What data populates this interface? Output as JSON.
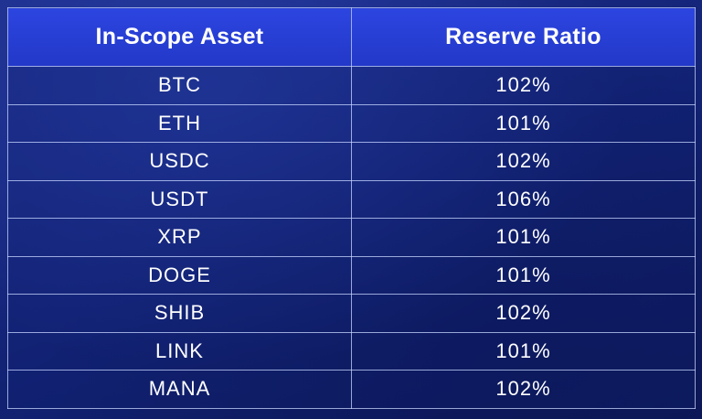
{
  "table": {
    "headers": [
      "In-Scope Asset",
      "Reserve Ratio"
    ],
    "rows": [
      [
        "BTC",
        "102%"
      ],
      [
        "ETH",
        "101%"
      ],
      [
        "USDC",
        "102%"
      ],
      [
        "USDT",
        "106%"
      ],
      [
        "XRP",
        "101%"
      ],
      [
        "DOGE",
        "101%"
      ],
      [
        "SHIB",
        "102%"
      ],
      [
        "LINK",
        "101%"
      ],
      [
        "MANA",
        "102%"
      ]
    ]
  },
  "colors": {
    "header_background": "#2a40d8",
    "body_background": "#132377",
    "text": "#ffffff",
    "border": "#c8d7ff"
  }
}
